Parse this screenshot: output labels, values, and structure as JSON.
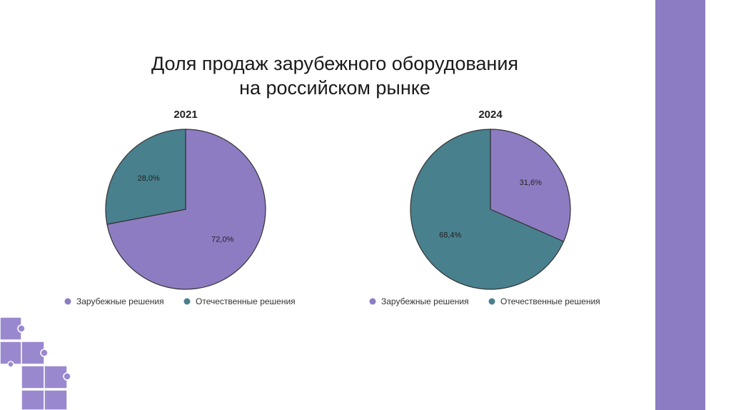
{
  "title": [
    "Доля продаж зарубежного оборудования",
    "на российском рынке"
  ],
  "chart_data": [
    {
      "type": "pie",
      "title": "2021",
      "categories": [
        "Зарубежные решения",
        "Отечественные решения"
      ],
      "values": [
        72.0,
        28.0
      ],
      "value_labels": [
        "72,0%",
        "28,0%"
      ],
      "colors": [
        "#8e7cc3",
        "#48808e"
      ]
    },
    {
      "type": "pie",
      "title": "2024",
      "categories": [
        "Зарубежные решения",
        "Отечественные решения"
      ],
      "values": [
        31.6,
        68.4
      ],
      "value_labels": [
        "31,6%",
        "68,4%"
      ],
      "colors": [
        "#8e7cc3",
        "#48808e"
      ]
    }
  ]
}
